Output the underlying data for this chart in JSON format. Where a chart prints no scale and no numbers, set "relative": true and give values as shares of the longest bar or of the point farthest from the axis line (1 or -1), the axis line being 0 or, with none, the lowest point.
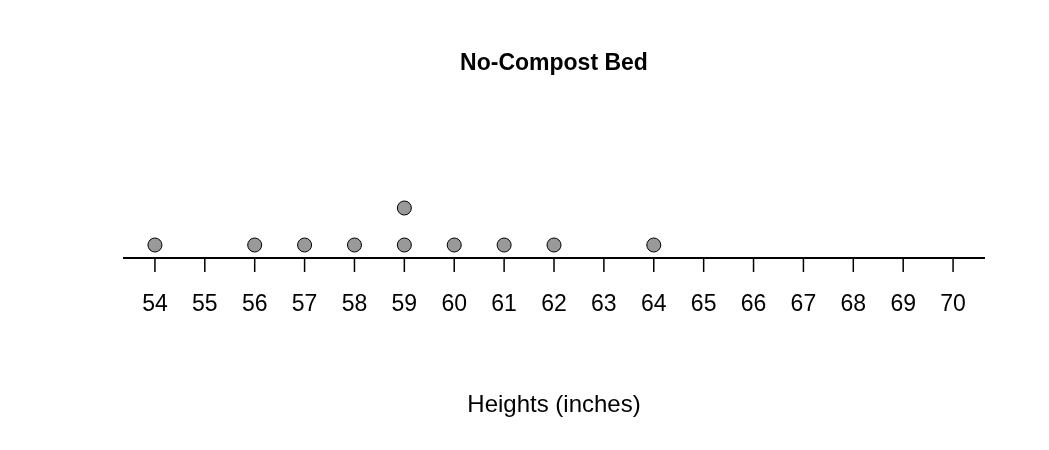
{
  "chart_data": {
    "type": "scatter",
    "title": "No-Compost Bed",
    "xlabel": "Heights (inches)",
    "x": [
      54,
      56,
      57,
      58,
      59,
      59,
      60,
      61,
      62,
      64
    ],
    "values": [
      0.26,
      0.26,
      0.26,
      0.26,
      0.26,
      1,
      0.26,
      0.26,
      0.26,
      0.26
    ],
    "relative": true,
    "color": "#999999",
    "marker": "circle",
    "xlim": [
      53.36,
      70.64
    ],
    "xticks": [
      54,
      55,
      56,
      57,
      58,
      59,
      60,
      61,
      62,
      63,
      64,
      65,
      66,
      67,
      68,
      69,
      70
    ]
  }
}
